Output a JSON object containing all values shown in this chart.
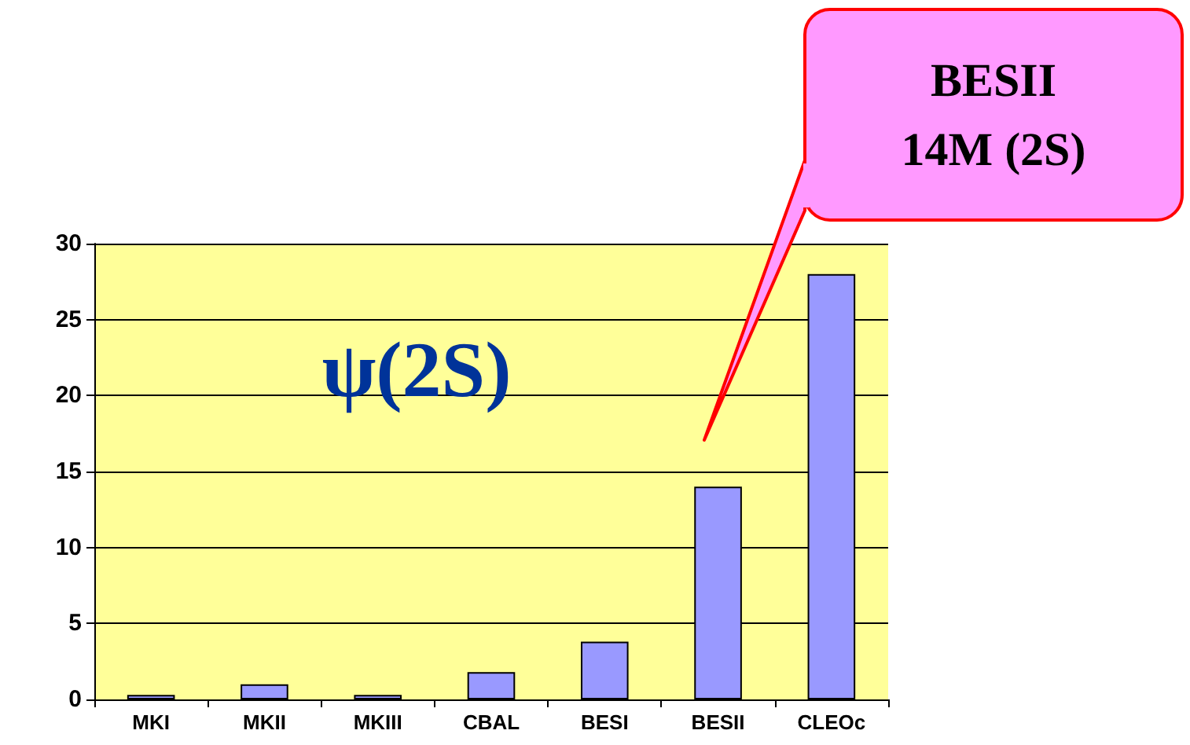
{
  "chart_data": {
    "type": "bar",
    "title": "ψ(2S)",
    "categories": [
      "MKI",
      "MKII",
      "MKIII",
      "CBAL",
      "BESI",
      "BESII",
      "CLEOc"
    ],
    "values": [
      0.3,
      1,
      0.3,
      1.8,
      3.8,
      14,
      28
    ],
    "color": "#9999ff",
    "ylim": [
      0,
      30
    ],
    "yticks": [
      0,
      5,
      10,
      15,
      20,
      25,
      30
    ],
    "grid": "y",
    "annotations": [
      "BESII\n14M    (2S)"
    ]
  }
}
